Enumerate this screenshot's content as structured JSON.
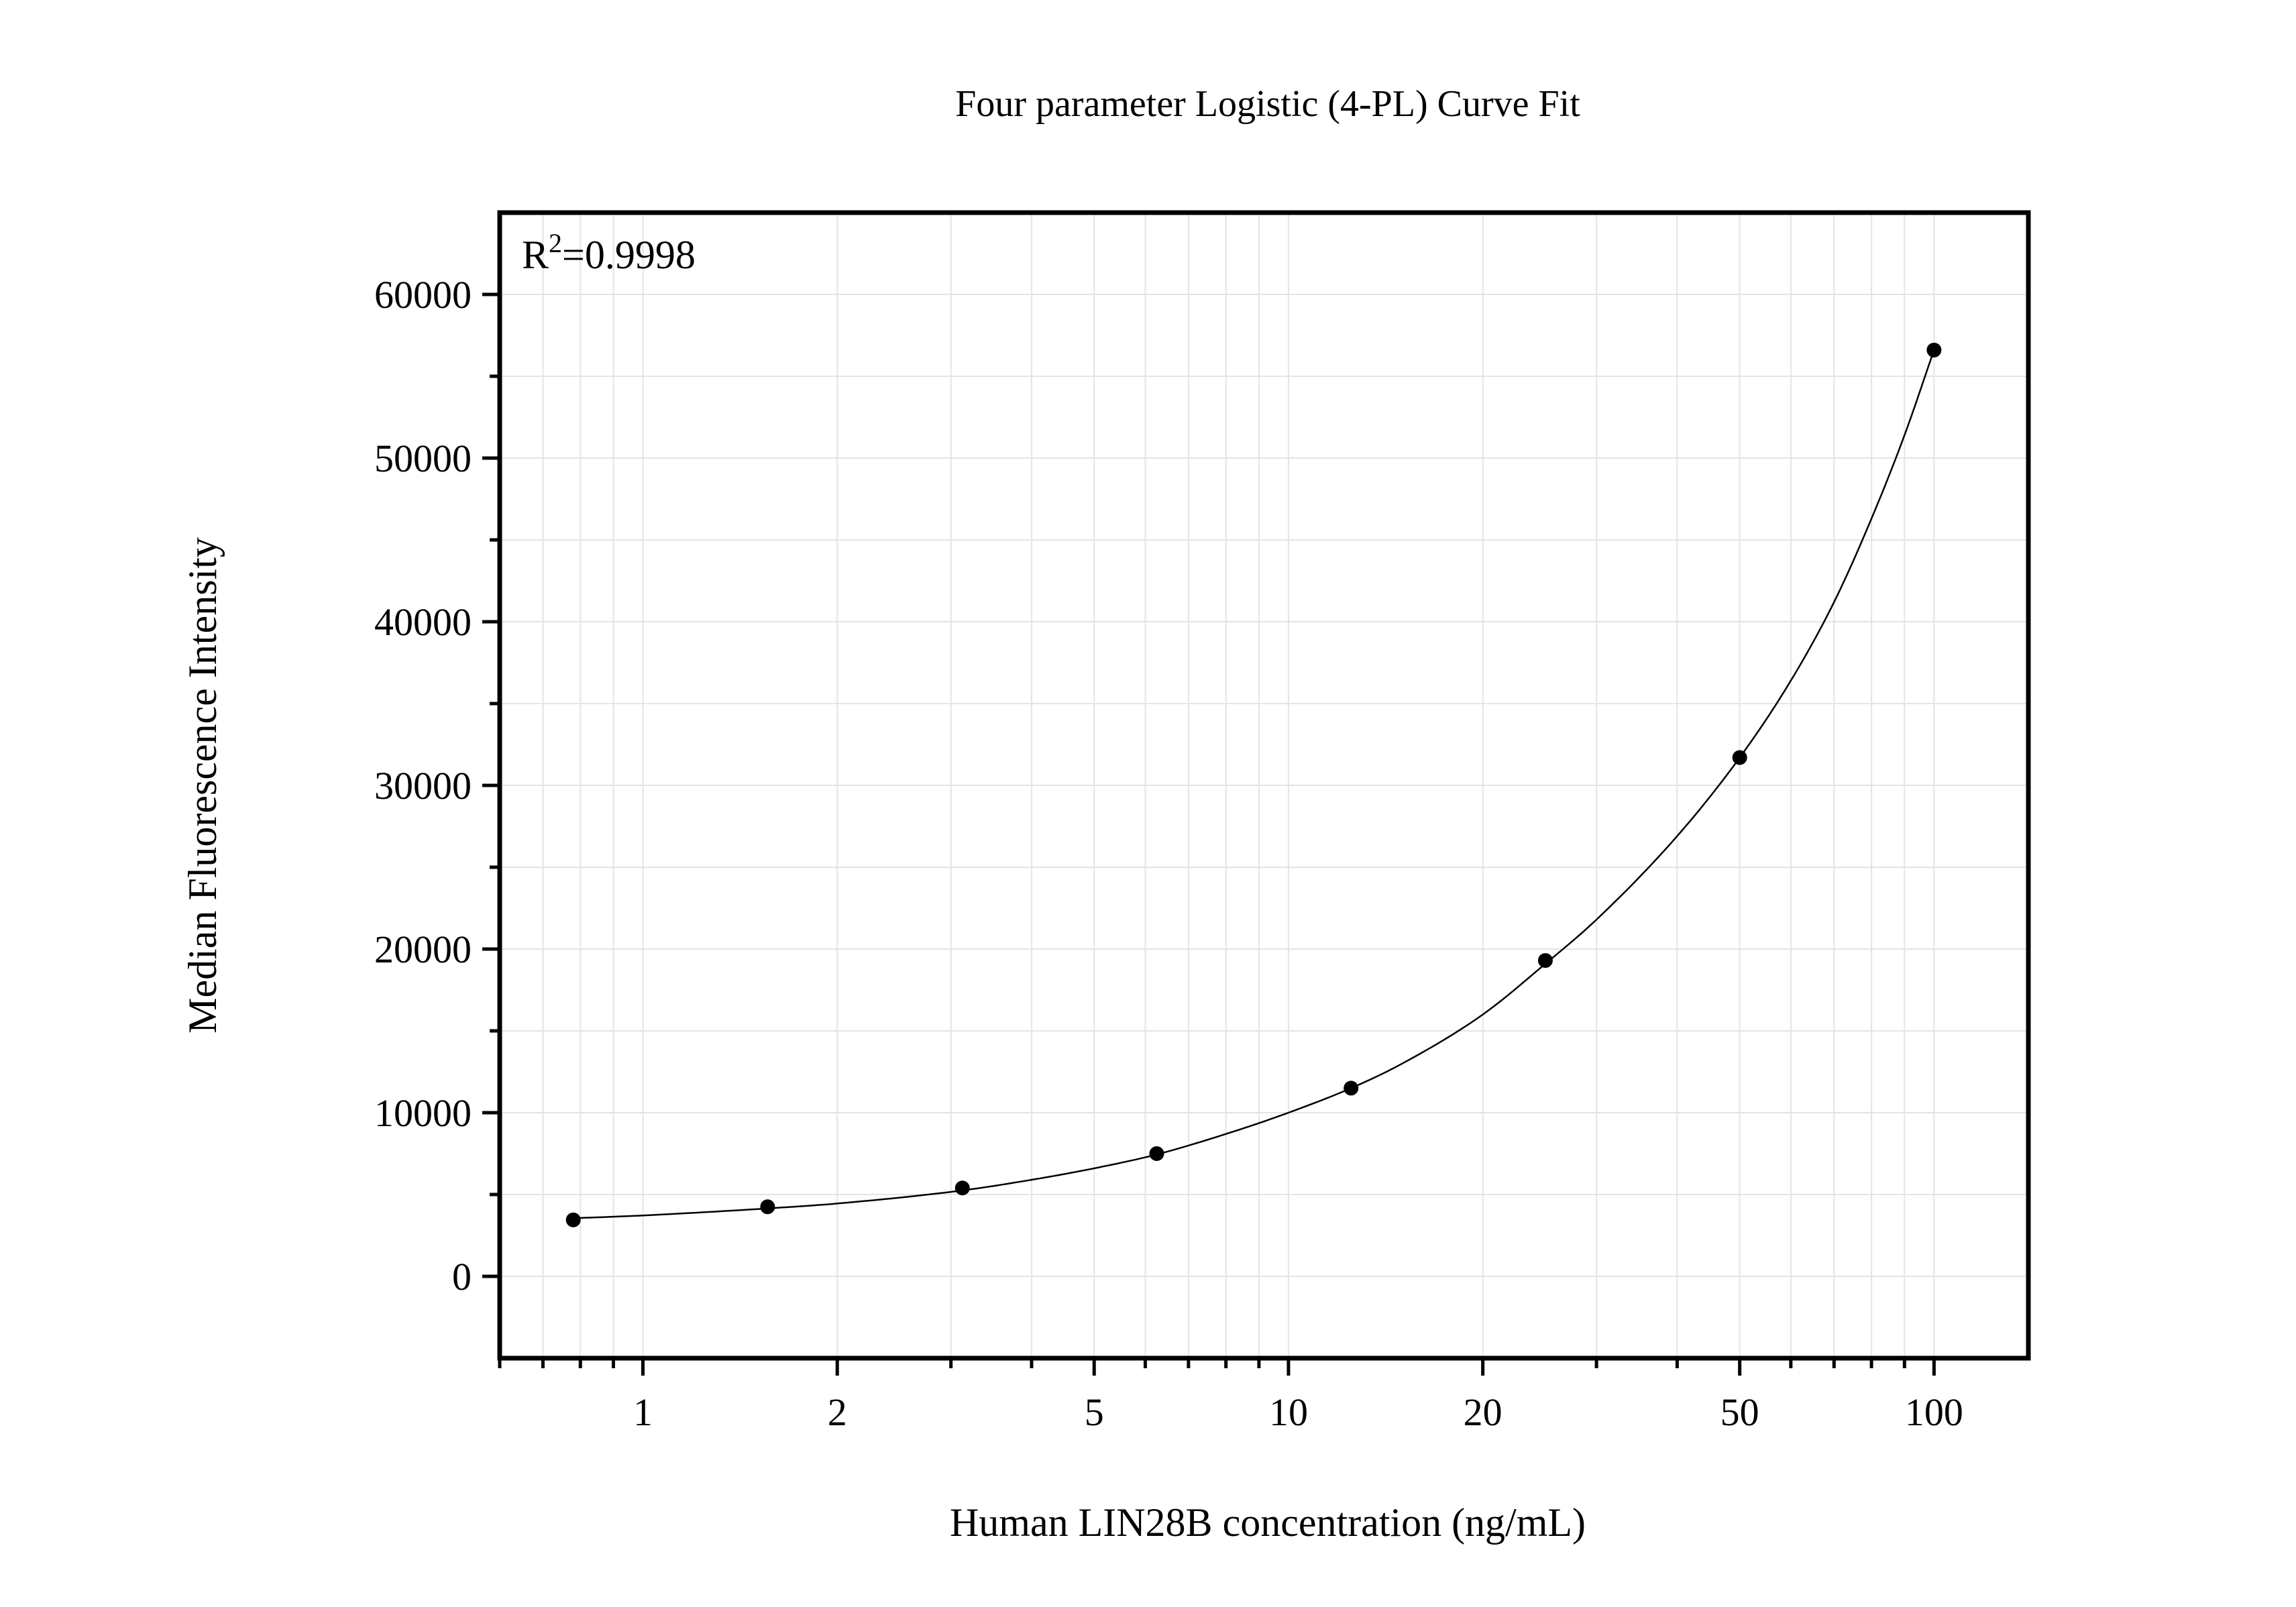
{
  "chart_data": {
    "type": "scatter",
    "title": "Four parameter Logistic (4-PL) Curve Fit",
    "xlabel": "Human LIN28B concentration (ng/mL)",
    "ylabel": "Median Fluorescence Intensity",
    "xscale": "log",
    "xlim": [
      0.6,
      140
    ],
    "ylim": [
      -5000,
      65000
    ],
    "grid": true,
    "x_ticks": [
      1,
      2,
      5,
      10,
      20,
      50,
      100
    ],
    "x_tick_labels": [
      "1",
      "2",
      "5",
      "10",
      "20",
      "50",
      "100"
    ],
    "y_ticks": [
      0,
      10000,
      20000,
      30000,
      40000,
      50000,
      60000
    ],
    "y_tick_labels": [
      "0",
      "10000",
      "20000",
      "30000",
      "40000",
      "50000",
      "60000"
    ],
    "annotation": {
      "prefix": "R",
      "superscript": "2",
      "suffix": "=0.9998",
      "position": "top-left"
    },
    "series": [
      {
        "x": [
          0.78,
          1.56,
          3.125,
          6.25,
          12.5,
          25,
          50,
          100
        ],
        "y": [
          3450,
          4250,
          5400,
          7500,
          11500,
          19300,
          31700,
          56600
        ]
      }
    ],
    "fit_curve": {
      "x": [
        0.78,
        1.0,
        1.56,
        2.0,
        3.125,
        4.0,
        5.0,
        6.25,
        8.0,
        10.0,
        12.5,
        15.0,
        20.0,
        25.0,
        30.0,
        40.0,
        50.0,
        60.0,
        70.0,
        80.0,
        90.0,
        100.0
      ],
      "y": [
        3550,
        3720,
        4150,
        4450,
        5250,
        5900,
        6600,
        7450,
        8700,
        10000,
        11500,
        13000,
        16000,
        19100,
        21800,
        26900,
        31700,
        36400,
        41200,
        46300,
        51400,
        56600
      ]
    }
  }
}
